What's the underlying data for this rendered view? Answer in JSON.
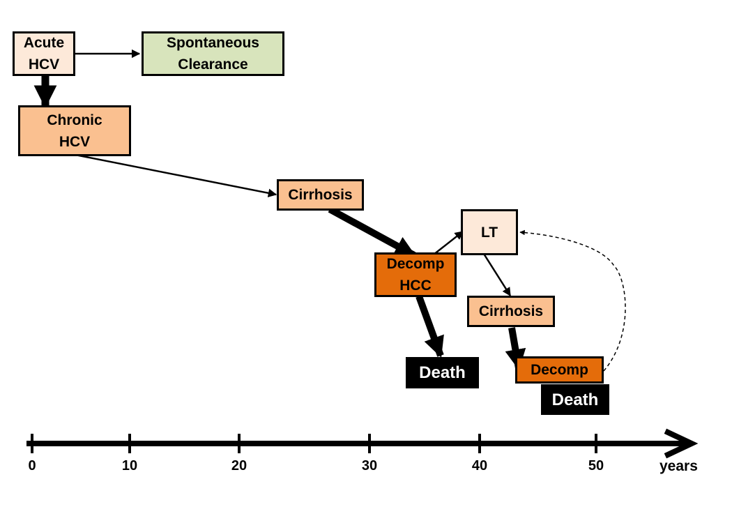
{
  "nodes": {
    "acute_hcv": "Acute\nHCV",
    "spontaneous_clearance": "Spontaneous\nClearance",
    "chronic_hcv": "Chronic\nHCV",
    "cirrhosis_1": "Cirrhosis",
    "decomp_hcc": "Decomp\nHCC",
    "lt": "LT",
    "cirrhosis_2": "Cirrhosis",
    "death_1": "Death",
    "decomp_2": "Decomp",
    "death_2": "Death"
  },
  "timeline": {
    "ticks": [
      "0",
      "10",
      "20",
      "30",
      "40",
      "50"
    ],
    "unit": "years"
  },
  "colors": {
    "light": "#fde9d9",
    "green": "#d8e4bc",
    "peach": "#fac090",
    "orange": "#e46c0a",
    "black": "#000000"
  }
}
